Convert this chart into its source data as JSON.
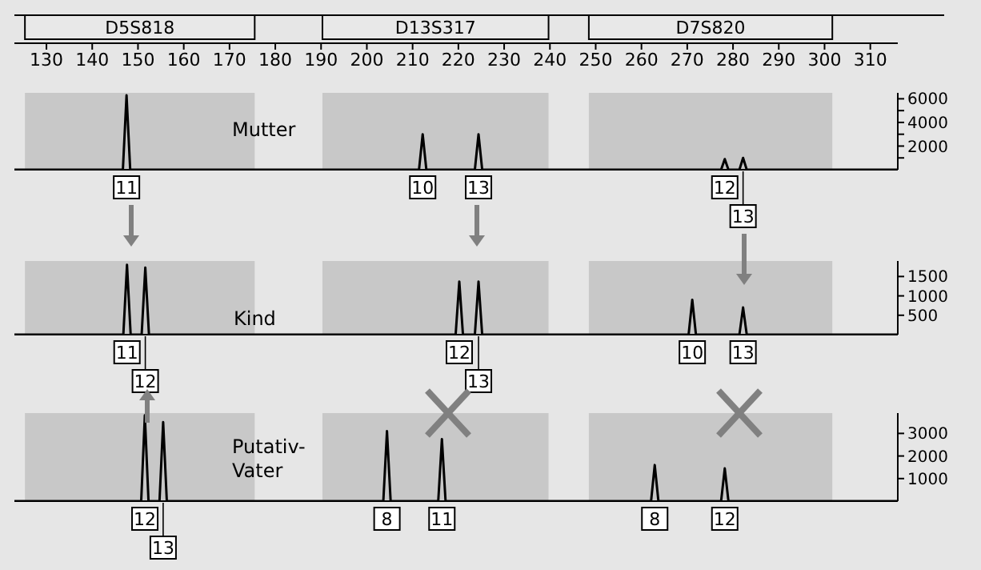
{
  "chart_data": [
    {
      "type": "line",
      "xlim": [
        123,
        316
      ],
      "xticks": [
        130,
        140,
        150,
        160,
        170,
        180,
        190,
        200,
        210,
        220,
        230,
        240,
        250,
        260,
        270,
        280,
        290,
        300,
        310
      ],
      "ylim": [
        0,
        6500
      ],
      "yticks": [
        {
          "value": 1000,
          "label": null
        },
        2000,
        {
          "value": 3000,
          "label": null
        },
        4000,
        {
          "value": 5000,
          "label": null
        },
        6000
      ],
      "bands": [
        {
          "axis": "x",
          "from": 125.3,
          "to": 175.5,
          "color": "#c8c8c8"
        },
        {
          "axis": "x",
          "from": 190.3,
          "to": 239.7,
          "color": "#c8c8c8"
        },
        {
          "axis": "x",
          "from": 248.5,
          "to": 301.7,
          "color": "#c8c8c8"
        }
      ],
      "series": [
        {
          "name": "Mutter",
          "color": "#000000",
          "x": [
            123,
            146.7,
            147.5,
            148.3,
            211.4,
            212.2,
            213.0,
            223.6,
            224.4,
            225.2,
            277.4,
            278.2,
            279.0,
            281.4,
            282.2,
            283.0,
            316
          ],
          "values": [
            0,
            0,
            6300,
            0,
            0,
            3000,
            0,
            0,
            3000,
            0,
            0,
            900,
            0,
            0,
            1000,
            0,
            0
          ]
        }
      ],
      "annotations": [
        "D5S818",
        "D13S317",
        "D7S820",
        {
          "text": "11",
          "x": 147.5,
          "y": 0
        },
        {
          "text": "10",
          "x": 212.2,
          "y": 0
        },
        {
          "text": "13",
          "x": 224.4,
          "y": 0
        },
        {
          "text": "12",
          "x": 278.2,
          "y": 0
        },
        {
          "text": "13",
          "x": 282.2,
          "y": 0
        }
      ]
    },
    {
      "type": "line",
      "xlim": [
        123,
        316
      ],
      "tick_labels": "y",
      "ylim": [
        0,
        1900
      ],
      "yticks": [
        500,
        1000,
        1500
      ],
      "bands": [
        {
          "axis": "x",
          "from": 125.3,
          "to": 175.5,
          "color": "#c8c8c8"
        },
        {
          "axis": "x",
          "from": 190.3,
          "to": 239.7,
          "color": "#c8c8c8"
        },
        {
          "axis": "x",
          "from": 248.5,
          "to": 301.7,
          "color": "#c8c8c8"
        }
      ],
      "series": [
        {
          "name": "Kind",
          "color": "#000000",
          "x": [
            123,
            146.8,
            147.6,
            148.4,
            150.8,
            151.6,
            152.4,
            219.4,
            220.2,
            221.0,
            223.6,
            224.4,
            225.2,
            270.3,
            271.1,
            271.9,
            281.4,
            282.2,
            283.0,
            316
          ],
          "values": [
            0,
            0,
            1800,
            0,
            0,
            1730,
            0,
            0,
            1370,
            0,
            0,
            1370,
            0,
            0,
            900,
            0,
            0,
            700,
            0,
            0
          ]
        }
      ],
      "annotations": [
        {
          "text": "11",
          "x": 147.6,
          "y": 0
        },
        {
          "text": "12",
          "x": 151.6,
          "y": 0
        },
        {
          "text": "12",
          "x": 220.2,
          "y": 0
        },
        {
          "text": "13",
          "x": 224.4,
          "y": 0
        },
        {
          "text": "10",
          "x": 271.1,
          "y": 0
        },
        {
          "text": "13",
          "x": 282.2,
          "y": 0
        }
      ]
    },
    {
      "type": "line",
      "xlim": [
        123,
        316
      ],
      "tick_labels": "y",
      "ylim": [
        0,
        3900
      ],
      "yticks": [
        1000,
        2000,
        3000
      ],
      "bands": [
        {
          "axis": "x",
          "from": 125.3,
          "to": 175.5,
          "color": "#c8c8c8"
        },
        {
          "axis": "x",
          "from": 190.3,
          "to": 239.7,
          "color": "#c8c8c8"
        },
        {
          "axis": "x",
          "from": 248.5,
          "to": 301.7,
          "color": "#c8c8c8"
        }
      ],
      "series": [
        {
          "name": "Putativ-Vater",
          "color": "#000000",
          "x": [
            123,
            150.7,
            151.5,
            152.3,
            154.7,
            155.5,
            156.3,
            203.6,
            204.4,
            205.2,
            215.6,
            216.4,
            217.2,
            262.1,
            262.9,
            263.7,
            277.4,
            278.2,
            279.0,
            316
          ],
          "values": [
            0,
            0,
            3800,
            0,
            0,
            3500,
            0,
            0,
            3100,
            0,
            0,
            2750,
            0,
            0,
            1600,
            0,
            0,
            1450,
            0,
            0
          ]
        }
      ],
      "annotations": [
        {
          "text": "12",
          "x": 151.5,
          "y": 0
        },
        {
          "text": "13",
          "x": 155.5,
          "y": 0
        },
        {
          "text": "8",
          "x": 204.4,
          "y": 0
        },
        {
          "text": "11",
          "x": 216.4,
          "y": 0
        },
        {
          "text": "8",
          "x": 262.9,
          "y": 0
        },
        {
          "text": "12",
          "x": 278.2,
          "y": 0
        }
      ]
    }
  ]
}
